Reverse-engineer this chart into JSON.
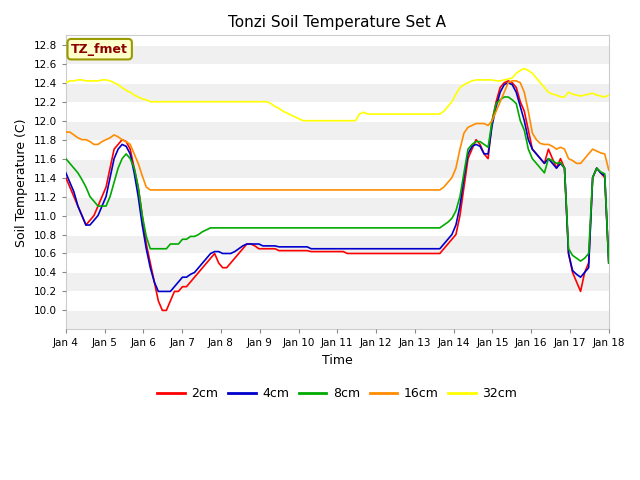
{
  "title": "Tonzi Soil Temperature Set A",
  "xlabel": "Time",
  "ylabel": "Soil Temperature (C)",
  "fig_facecolor": "#ffffff",
  "plot_bg_color": "#ffffff",
  "ylim": [
    9.8,
    12.9
  ],
  "yticks": [
    10.0,
    10.2,
    10.4,
    10.6,
    10.8,
    11.0,
    11.2,
    11.4,
    11.6,
    11.8,
    12.0,
    12.2,
    12.4,
    12.6,
    12.8
  ],
  "xtick_labels": [
    "Jan 4",
    "Jan 5",
    "Jan 6",
    "Jan 7",
    "Jan 8",
    "Jan 9",
    "Jan 10",
    "Jan 11",
    "Jan 12",
    "Jan 13",
    "Jan 14",
    "Jan 15",
    "Jan 16",
    "Jan 17",
    "Jan 18"
  ],
  "legend_label": "TZ_fmet",
  "legend_text_color": "#8b0000",
  "legend_box_facecolor": "#ffffcc",
  "legend_box_edgecolor": "#999900",
  "band_colors": [
    "#f0f0f0",
    "#ffffff"
  ],
  "series_keys": [
    "2cm",
    "4cm",
    "8cm",
    "16cm",
    "32cm"
  ],
  "series_colors": [
    "#ff0000",
    "#0000cc",
    "#00aa00",
    "#ff8c00",
    "#ffff00"
  ],
  "y_2cm": [
    11.4,
    11.3,
    11.2,
    11.1,
    11.0,
    10.9,
    10.95,
    11.0,
    11.1,
    11.2,
    11.3,
    11.5,
    11.7,
    11.75,
    11.8,
    11.78,
    11.7,
    11.5,
    11.3,
    11.0,
    10.7,
    10.5,
    10.3,
    10.1,
    10.0,
    10.0,
    10.1,
    10.2,
    10.2,
    10.25,
    10.25,
    10.3,
    10.35,
    10.4,
    10.45,
    10.5,
    10.55,
    10.6,
    10.5,
    10.45,
    10.45,
    10.5,
    10.55,
    10.6,
    10.65,
    10.7,
    10.7,
    10.68,
    10.65,
    10.65,
    10.65,
    10.65,
    10.65,
    10.63,
    10.63,
    10.63,
    10.63,
    10.63,
    10.63,
    10.63,
    10.63,
    10.62,
    10.62,
    10.62,
    10.62,
    10.62,
    10.62,
    10.62,
    10.62,
    10.62,
    10.6,
    10.6,
    10.6,
    10.6,
    10.6,
    10.6,
    10.6,
    10.6,
    10.6,
    10.6,
    10.6,
    10.6,
    10.6,
    10.6,
    10.6,
    10.6,
    10.6,
    10.6,
    10.6,
    10.6,
    10.6,
    10.6,
    10.6,
    10.6,
    10.65,
    10.7,
    10.75,
    10.8,
    11.0,
    11.3,
    11.6,
    11.7,
    11.8,
    11.75,
    11.65,
    11.6,
    12.0,
    12.2,
    12.35,
    12.4,
    12.42,
    12.4,
    12.35,
    12.2,
    12.1,
    11.9,
    11.7,
    11.65,
    11.6,
    11.55,
    11.7,
    11.6,
    11.5,
    11.6,
    11.5,
    10.6,
    10.4,
    10.3,
    10.2,
    10.4,
    10.5,
    11.4,
    11.5,
    11.45,
    11.4,
    10.5
  ],
  "y_4cm": [
    11.45,
    11.35,
    11.25,
    11.1,
    11.0,
    10.9,
    10.9,
    10.95,
    11.0,
    11.1,
    11.2,
    11.4,
    11.6,
    11.7,
    11.75,
    11.73,
    11.65,
    11.45,
    11.2,
    10.9,
    10.65,
    10.45,
    10.3,
    10.2,
    10.2,
    10.2,
    10.2,
    10.25,
    10.3,
    10.35,
    10.35,
    10.38,
    10.4,
    10.45,
    10.5,
    10.55,
    10.6,
    10.62,
    10.62,
    10.6,
    10.6,
    10.6,
    10.62,
    10.65,
    10.68,
    10.7,
    10.7,
    10.7,
    10.7,
    10.68,
    10.68,
    10.68,
    10.68,
    10.67,
    10.67,
    10.67,
    10.67,
    10.67,
    10.67,
    10.67,
    10.67,
    10.65,
    10.65,
    10.65,
    10.65,
    10.65,
    10.65,
    10.65,
    10.65,
    10.65,
    10.65,
    10.65,
    10.65,
    10.65,
    10.65,
    10.65,
    10.65,
    10.65,
    10.65,
    10.65,
    10.65,
    10.65,
    10.65,
    10.65,
    10.65,
    10.65,
    10.65,
    10.65,
    10.65,
    10.65,
    10.65,
    10.65,
    10.65,
    10.65,
    10.7,
    10.75,
    10.8,
    10.9,
    11.1,
    11.4,
    11.65,
    11.73,
    11.75,
    11.73,
    11.65,
    11.65,
    11.95,
    12.15,
    12.3,
    12.38,
    12.4,
    12.38,
    12.3,
    12.15,
    12.0,
    11.8,
    11.7,
    11.65,
    11.6,
    11.55,
    11.6,
    11.55,
    11.5,
    11.55,
    11.5,
    10.6,
    10.42,
    10.38,
    10.35,
    10.4,
    10.45,
    11.4,
    11.5,
    11.45,
    11.42,
    10.5
  ],
  "y_8cm": [
    11.6,
    11.55,
    11.5,
    11.45,
    11.38,
    11.3,
    11.2,
    11.15,
    11.1,
    11.1,
    11.1,
    11.2,
    11.35,
    11.5,
    11.6,
    11.65,
    11.6,
    11.5,
    11.3,
    11.0,
    10.78,
    10.65,
    10.65,
    10.65,
    10.65,
    10.65,
    10.7,
    10.7,
    10.7,
    10.75,
    10.75,
    10.78,
    10.78,
    10.8,
    10.83,
    10.85,
    10.87,
    10.87,
    10.87,
    10.87,
    10.87,
    10.87,
    10.87,
    10.87,
    10.87,
    10.87,
    10.87,
    10.87,
    10.87,
    10.87,
    10.87,
    10.87,
    10.87,
    10.87,
    10.87,
    10.87,
    10.87,
    10.87,
    10.87,
    10.87,
    10.87,
    10.87,
    10.87,
    10.87,
    10.87,
    10.87,
    10.87,
    10.87,
    10.87,
    10.87,
    10.87,
    10.87,
    10.87,
    10.87,
    10.87,
    10.87,
    10.87,
    10.87,
    10.87,
    10.87,
    10.87,
    10.87,
    10.87,
    10.87,
    10.87,
    10.87,
    10.87,
    10.87,
    10.87,
    10.87,
    10.87,
    10.87,
    10.87,
    10.87,
    10.9,
    10.93,
    10.97,
    11.05,
    11.2,
    11.45,
    11.7,
    11.75,
    11.78,
    11.78,
    11.75,
    11.72,
    12.0,
    12.18,
    12.22,
    12.25,
    12.25,
    12.22,
    12.18,
    12.0,
    11.9,
    11.7,
    11.6,
    11.55,
    11.5,
    11.45,
    11.6,
    11.58,
    11.55,
    11.56,
    11.5,
    10.65,
    10.58,
    10.55,
    10.52,
    10.55,
    10.6,
    11.4,
    11.5,
    11.46,
    11.44,
    10.5
  ],
  "y_16cm": [
    11.88,
    11.88,
    11.85,
    11.82,
    11.8,
    11.8,
    11.78,
    11.75,
    11.75,
    11.78,
    11.8,
    11.82,
    11.85,
    11.83,
    11.8,
    11.78,
    11.75,
    11.65,
    11.55,
    11.42,
    11.3,
    11.27,
    11.27,
    11.27,
    11.27,
    11.27,
    11.27,
    11.27,
    11.27,
    11.27,
    11.27,
    11.27,
    11.27,
    11.27,
    11.27,
    11.27,
    11.27,
    11.27,
    11.27,
    11.27,
    11.27,
    11.27,
    11.27,
    11.27,
    11.27,
    11.27,
    11.27,
    11.27,
    11.27,
    11.27,
    11.27,
    11.27,
    11.27,
    11.27,
    11.27,
    11.27,
    11.27,
    11.27,
    11.27,
    11.27,
    11.27,
    11.27,
    11.27,
    11.27,
    11.27,
    11.27,
    11.27,
    11.27,
    11.27,
    11.27,
    11.27,
    11.27,
    11.27,
    11.27,
    11.27,
    11.27,
    11.27,
    11.27,
    11.27,
    11.27,
    11.27,
    11.27,
    11.27,
    11.27,
    11.27,
    11.27,
    11.27,
    11.27,
    11.27,
    11.27,
    11.27,
    11.27,
    11.27,
    11.27,
    11.3,
    11.35,
    11.4,
    11.5,
    11.7,
    11.87,
    11.93,
    11.95,
    11.97,
    11.97,
    11.97,
    11.95,
    12.0,
    12.1,
    12.2,
    12.3,
    12.4,
    12.42,
    12.42,
    12.4,
    12.3,
    12.1,
    11.87,
    11.8,
    11.76,
    11.75,
    11.75,
    11.73,
    11.7,
    11.72,
    11.7,
    11.6,
    11.58,
    11.55,
    11.55,
    11.6,
    11.65,
    11.7,
    11.68,
    11.66,
    11.65,
    11.48
  ],
  "y_32cm": [
    12.4,
    12.42,
    12.42,
    12.43,
    12.43,
    12.42,
    12.42,
    12.42,
    12.42,
    12.43,
    12.43,
    12.42,
    12.4,
    12.38,
    12.35,
    12.32,
    12.3,
    12.27,
    12.25,
    12.23,
    12.22,
    12.2,
    12.2,
    12.2,
    12.2,
    12.2,
    12.2,
    12.2,
    12.2,
    12.2,
    12.2,
    12.2,
    12.2,
    12.2,
    12.2,
    12.2,
    12.2,
    12.2,
    12.2,
    12.2,
    12.2,
    12.2,
    12.2,
    12.2,
    12.2,
    12.2,
    12.2,
    12.2,
    12.2,
    12.2,
    12.2,
    12.18,
    12.15,
    12.13,
    12.1,
    12.08,
    12.06,
    12.04,
    12.02,
    12.0,
    12.0,
    12.0,
    12.0,
    12.0,
    12.0,
    12.0,
    12.0,
    12.0,
    12.0,
    12.0,
    12.0,
    12.0,
    12.0,
    12.07,
    12.09,
    12.07,
    12.07,
    12.07,
    12.07,
    12.07,
    12.07,
    12.07,
    12.07,
    12.07,
    12.07,
    12.07,
    12.07,
    12.07,
    12.07,
    12.07,
    12.07,
    12.07,
    12.07,
    12.07,
    12.1,
    12.15,
    12.2,
    12.28,
    12.35,
    12.38,
    12.4,
    12.42,
    12.43,
    12.43,
    12.43,
    12.43,
    12.43,
    12.42,
    12.42,
    12.43,
    12.44,
    12.45,
    12.5,
    12.53,
    12.55,
    12.53,
    12.5,
    12.45,
    12.4,
    12.35,
    12.3,
    12.28,
    12.27,
    12.25,
    12.25,
    12.3,
    12.28,
    12.27,
    12.26,
    12.27,
    12.28,
    12.29,
    12.27,
    12.26,
    12.25,
    12.27
  ]
}
